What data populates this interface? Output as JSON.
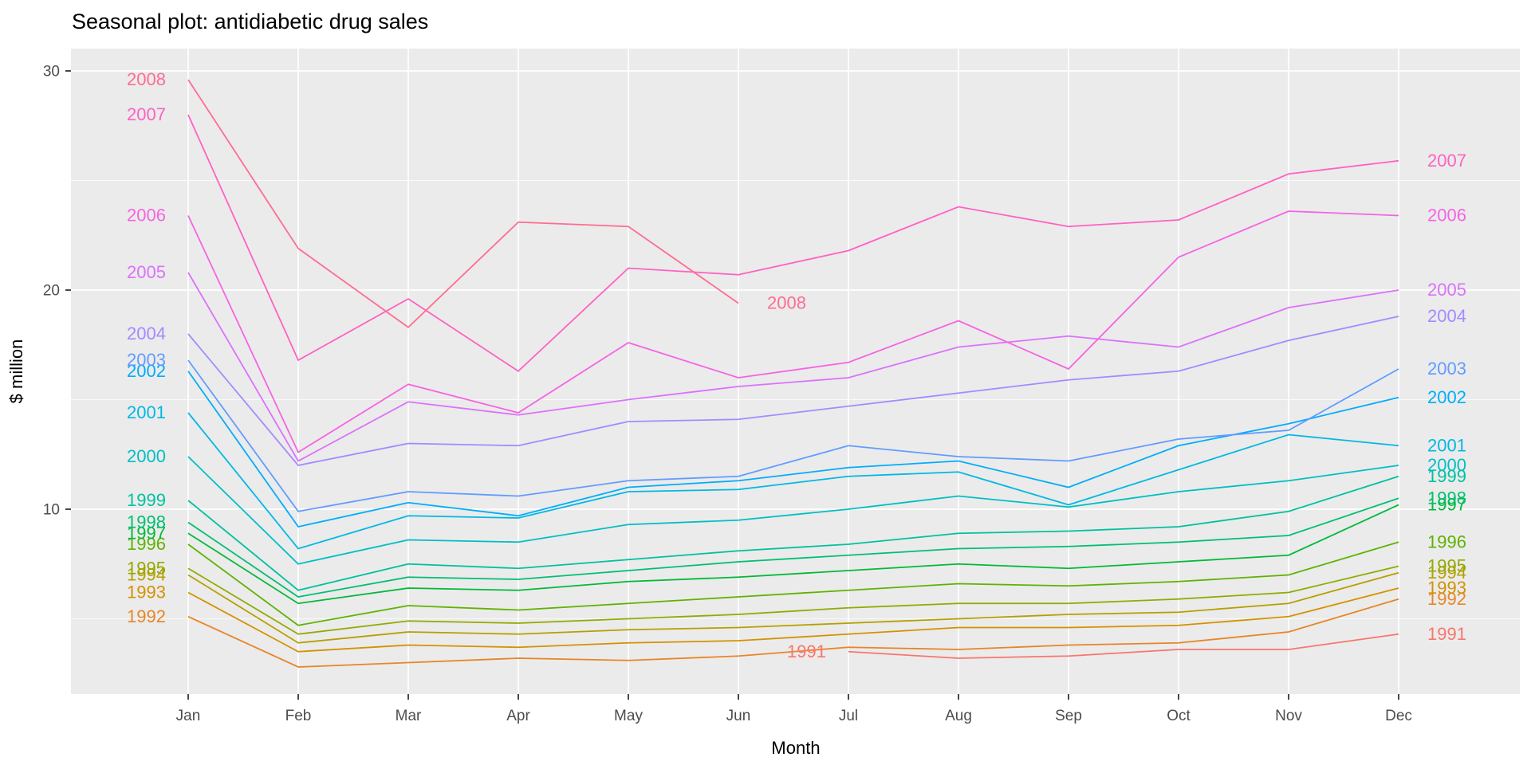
{
  "figure": {
    "background": "#FFFFFF",
    "panel_background": "#EBEBEB",
    "grid_color": "#FFFFFF",
    "tick_text_color": "#4D4D4D",
    "tick_mark_color": "#333333",
    "axis_title_color": "#000000",
    "title_color": "#000000"
  },
  "chart_data": {
    "type": "line",
    "title": "Seasonal plot: antidiabetic drug sales",
    "xlabel": "Month",
    "ylabel": "$ million",
    "x_categories": [
      "Jan",
      "Feb",
      "Mar",
      "Apr",
      "May",
      "Jun",
      "Jul",
      "Aug",
      "Sep",
      "Oct",
      "Nov",
      "Dec"
    ],
    "y_ticks": [
      10,
      20,
      30
    ],
    "y_minor_ticks": [
      5,
      15,
      25
    ],
    "ylim": [
      1.5,
      31.5
    ],
    "grid": true,
    "legend": "none (inline year labels at series start and end)",
    "series": [
      {
        "year": "1991",
        "color": "#F8766D",
        "values": [
          null,
          null,
          null,
          null,
          null,
          null,
          3.5,
          3.2,
          3.3,
          3.6,
          3.6,
          4.3
        ]
      },
      {
        "year": "1992",
        "color": "#E88526",
        "values": [
          5.1,
          2.8,
          3.0,
          3.2,
          3.1,
          3.3,
          3.7,
          3.6,
          3.8,
          3.9,
          4.4,
          5.9
        ]
      },
      {
        "year": "1993",
        "color": "#D39200",
        "values": [
          6.2,
          3.5,
          3.8,
          3.7,
          3.9,
          4.0,
          4.3,
          4.6,
          4.6,
          4.7,
          5.1,
          6.4
        ]
      },
      {
        "year": "1994",
        "color": "#B79F00",
        "values": [
          7.0,
          3.9,
          4.4,
          4.3,
          4.5,
          4.6,
          4.8,
          5.0,
          5.2,
          5.3,
          5.7,
          7.1
        ]
      },
      {
        "year": "1995",
        "color": "#93AA00",
        "values": [
          7.3,
          4.3,
          4.9,
          4.8,
          5.0,
          5.2,
          5.5,
          5.7,
          5.7,
          5.9,
          6.2,
          7.4
        ]
      },
      {
        "year": "1996",
        "color": "#5EB300",
        "values": [
          8.4,
          4.7,
          5.6,
          5.4,
          5.7,
          6.0,
          6.3,
          6.6,
          6.5,
          6.7,
          7.0,
          8.5
        ]
      },
      {
        "year": "1997",
        "color": "#00BA38",
        "values": [
          8.9,
          5.7,
          6.4,
          6.3,
          6.7,
          6.9,
          7.2,
          7.5,
          7.3,
          7.6,
          7.9,
          10.2
        ]
      },
      {
        "year": "1998",
        "color": "#00BF74",
        "values": [
          9.4,
          6.0,
          6.9,
          6.8,
          7.2,
          7.6,
          7.9,
          8.2,
          8.3,
          8.5,
          8.8,
          10.5
        ]
      },
      {
        "year": "1999",
        "color": "#00C19F",
        "values": [
          10.4,
          6.3,
          7.5,
          7.3,
          7.7,
          8.1,
          8.4,
          8.9,
          9.0,
          9.2,
          9.9,
          11.5
        ]
      },
      {
        "year": "2000",
        "color": "#00BFC4",
        "values": [
          12.4,
          7.5,
          8.6,
          8.5,
          9.3,
          9.5,
          10.0,
          10.6,
          10.1,
          10.8,
          11.3,
          12.0
        ]
      },
      {
        "year": "2001",
        "color": "#00B9E3",
        "values": [
          14.4,
          8.2,
          9.7,
          9.6,
          10.8,
          10.9,
          11.5,
          11.7,
          10.2,
          11.8,
          13.4,
          12.9
        ]
      },
      {
        "year": "2002",
        "color": "#00ADFA",
        "values": [
          16.3,
          9.2,
          10.3,
          9.7,
          11.0,
          11.3,
          11.9,
          12.2,
          11.0,
          12.9,
          13.9,
          15.1
        ]
      },
      {
        "year": "2003",
        "color": "#619CFF",
        "values": [
          16.8,
          9.9,
          10.8,
          10.6,
          11.3,
          11.5,
          12.9,
          12.4,
          12.2,
          13.2,
          13.6,
          16.4
        ]
      },
      {
        "year": "2004",
        "color": "#A58AFF",
        "values": [
          18.0,
          12.0,
          13.0,
          12.9,
          14.0,
          14.1,
          14.7,
          15.3,
          15.9,
          16.3,
          17.7,
          18.8
        ]
      },
      {
        "year": "2005",
        "color": "#DB72FB",
        "values": [
          20.8,
          12.2,
          14.9,
          14.3,
          15.0,
          15.6,
          16.0,
          17.4,
          17.9,
          17.4,
          19.2,
          20.0
        ]
      },
      {
        "year": "2006",
        "color": "#F564E3",
        "values": [
          23.4,
          12.6,
          15.7,
          14.4,
          17.6,
          16.0,
          16.7,
          18.6,
          16.4,
          21.5,
          23.6,
          23.4
        ]
      },
      {
        "year": "2007",
        "color": "#FF61C3",
        "values": [
          28.0,
          16.8,
          19.6,
          16.3,
          21.0,
          20.7,
          21.8,
          23.8,
          22.9,
          23.2,
          25.3,
          25.9
        ]
      },
      {
        "year": "2008",
        "color": "#FF6C91",
        "values": [
          29.6,
          21.9,
          18.3,
          23.1,
          22.9,
          19.4,
          null,
          null,
          null,
          null,
          null,
          null
        ]
      }
    ]
  }
}
